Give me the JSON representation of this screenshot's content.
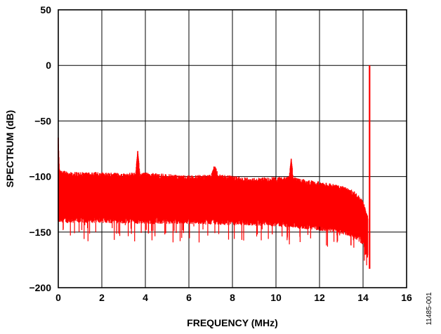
{
  "chart_data": {
    "type": "line",
    "title": "",
    "xlabel": "FREQUENCY (MHz)",
    "ylabel": "SPECTRUM (dB)",
    "xlim": [
      0,
      16
    ],
    "ylim": [
      -200,
      50
    ],
    "xticks": [
      "0",
      "2",
      "4",
      "6",
      "8",
      "10",
      "12",
      "14",
      "16"
    ],
    "yticks": [
      "50",
      "0",
      "−50",
      "−100",
      "−150",
      "−200"
    ],
    "grid": true,
    "legend": "none",
    "series": [
      {
        "color": "#ff0000",
        "style": "dense noise spectrum",
        "upper_envelope": {
          "x": [
            0.0,
            0.05,
            0.3,
            1.0,
            2.0,
            3.0,
            3.55,
            3.65,
            3.75,
            4.5,
            6.0,
            7.0,
            7.2,
            7.4,
            9.0,
            10.6,
            10.7,
            10.8,
            11.5,
            12.5,
            13.0,
            13.5,
            13.8,
            14.0,
            14.1,
            14.2
          ],
          "y": [
            -65,
            -93,
            -95,
            -96,
            -96,
            -97,
            -96,
            -77,
            -96,
            -97,
            -99,
            -98,
            -91,
            -98,
            -101,
            -100,
            -84,
            -100,
            -103,
            -106,
            -108,
            -112,
            -116,
            -122,
            -128,
            -135
          ]
        },
        "lower_envelope": {
          "x": [
            0.0,
            0.3,
            2.0,
            4.0,
            6.0,
            8.0,
            10.0,
            11.0,
            12.0,
            13.0,
            13.5,
            13.8,
            14.0,
            14.1,
            14.2,
            14.3
          ],
          "y": [
            -140,
            -140,
            -140,
            -141,
            -141,
            -142,
            -143,
            -145,
            -147,
            -150,
            -153,
            -156,
            -160,
            -166,
            -173,
            -183
          ]
        },
        "spikes": [
          {
            "x": 0.0,
            "y": -65
          },
          {
            "x": 3.65,
            "y": -77
          },
          {
            "x": 7.15,
            "y": -91
          },
          {
            "x": 10.7,
            "y": -84
          },
          {
            "x": 14.3,
            "y": 0
          }
        ]
      }
    ]
  },
  "figure_id": "11485-001"
}
